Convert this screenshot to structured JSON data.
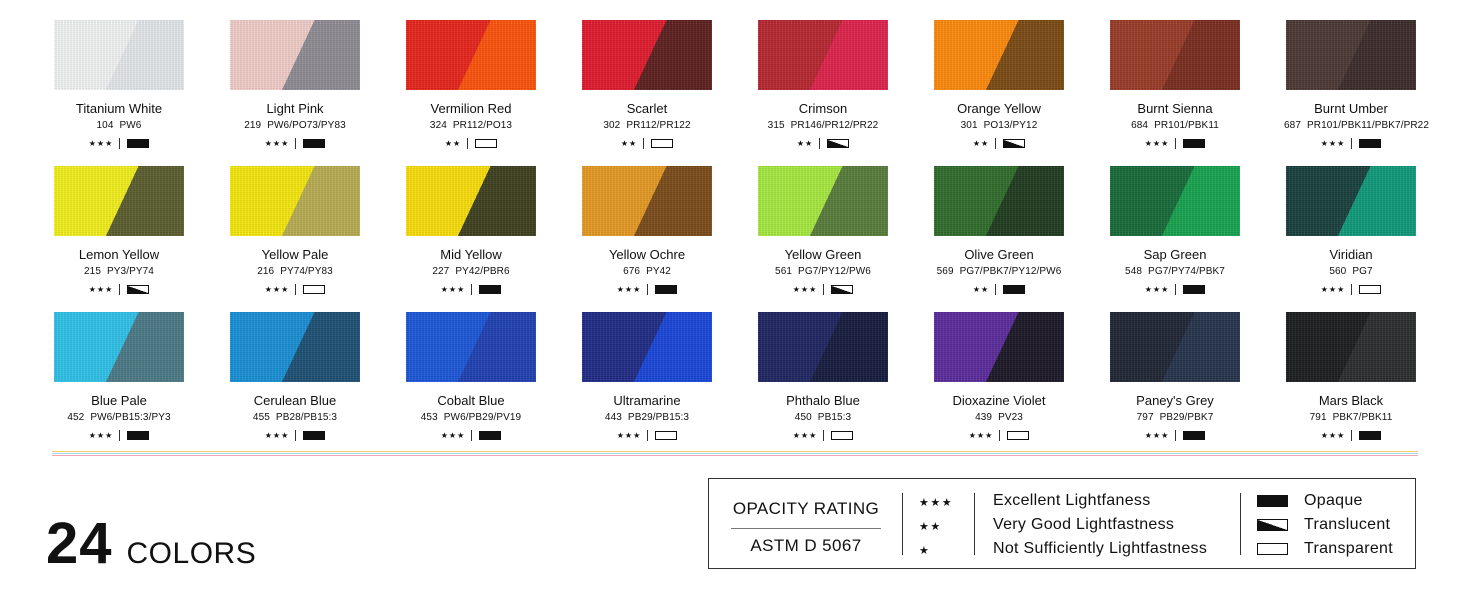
{
  "colors": [
    {
      "name": "Titanium White",
      "number": "104",
      "pigments": "PW6",
      "stars": "★★★",
      "opacity": "opaque",
      "c1": "#f4f5f6",
      "c2": "#e6e9ec"
    },
    {
      "name": "Light Pink",
      "number": "219",
      "pigments": "PW6/PO73/PY83",
      "stars": "★★★",
      "opacity": "opaque",
      "c1": "#f3cfc9",
      "c2": "#8f8c95"
    },
    {
      "name": "Vermilion Red",
      "number": "324",
      "pigments": "PR112/PO13",
      "stars": "★★",
      "opacity": "transparent",
      "c1": "#e8231a",
      "c2": "#ff5208"
    },
    {
      "name": "Scarlet",
      "number": "302",
      "pigments": "PR112/PR122",
      "stars": "★★",
      "opacity": "transparent",
      "c1": "#e2192d",
      "c2": "#5c1e1c"
    },
    {
      "name": "Crimson",
      "number": "315",
      "pigments": "PR146/PR12/PR22",
      "stars": "★★",
      "opacity": "translucent",
      "c1": "#b8252f",
      "c2": "#e0214b"
    },
    {
      "name": "Orange Yellow",
      "number": "301",
      "pigments": "PO13/PY12",
      "stars": "★★",
      "opacity": "translucent",
      "c1": "#ff8a0a",
      "c2": "#7a4a12"
    },
    {
      "name": "Burnt Sienna",
      "number": "684",
      "pigments": "PR101/PBK11",
      "stars": "★★★",
      "opacity": "opaque",
      "c1": "#9a3a26",
      "c2": "#7a2c1d"
    },
    {
      "name": "Burnt Umber",
      "number": "687",
      "pigments": "PR101/PBK11/PBK7/PR22",
      "stars": "★★★",
      "opacity": "opaque",
      "c1": "#4b3733",
      "c2": "#3a2a28"
    },
    {
      "name": "Lemon Yellow",
      "number": "215",
      "pigments": "PY3/PY74",
      "stars": "★★★",
      "opacity": "translucent",
      "c1": "#f3f11a",
      "c2": "#5a5d2c"
    },
    {
      "name": "Yellow Pale",
      "number": "216",
      "pigments": "PY74/PY83",
      "stars": "★★★",
      "opacity": "transparent",
      "c1": "#f7ea0c",
      "c2": "#b8ad52"
    },
    {
      "name": "Mid Yellow",
      "number": "227",
      "pigments": "PY42/PBR6",
      "stars": "★★★",
      "opacity": "opaque",
      "c1": "#fbe00a",
      "c2": "#3c3f1c"
    },
    {
      "name": "Yellow Ochre",
      "number": "676",
      "pigments": "PY42",
      "stars": "★★★",
      "opacity": "opaque",
      "c1": "#e79a22",
      "c2": "#7a4a18"
    },
    {
      "name": "Yellow Green",
      "number": "561",
      "pigments": "PG7/PY12/PW6",
      "stars": "★★★",
      "opacity": "translucent",
      "c1": "#a7ea3e",
      "c2": "#567c3a"
    },
    {
      "name": "Olive Green",
      "number": "569",
      "pigments": "PG7/PBK7/PY12/PW6",
      "stars": "★★",
      "opacity": "opaque",
      "c1": "#2e6c2a",
      "c2": "#1d3a1d"
    },
    {
      "name": "Sap Green",
      "number": "548",
      "pigments": "PG7/PY74/PBK7",
      "stars": "★★★",
      "opacity": "opaque",
      "c1": "#156a38",
      "c2": "#15a34e"
    },
    {
      "name": "Viridian",
      "number": "560",
      "pigments": "PG7",
      "stars": "★★★",
      "opacity": "transparent",
      "c1": "#163f3c",
      "c2": "#0e9a7a"
    },
    {
      "name": "Blue Pale",
      "number": "452",
      "pigments": "PW6/PB15:3/PY3",
      "stars": "★★★",
      "opacity": "opaque",
      "c1": "#2ec3ea",
      "c2": "#4a7a86"
    },
    {
      "name": "Cerulean Blue",
      "number": "455",
      "pigments": "PB28/PB15:3",
      "stars": "★★★",
      "opacity": "opaque",
      "c1": "#168fd6",
      "c2": "#1b4f74"
    },
    {
      "name": "Cobalt Blue",
      "number": "453",
      "pigments": "PW6/PB29/PV19",
      "stars": "★★★",
      "opacity": "opaque",
      "c1": "#1a56d8",
      "c2": "#1d3fb2"
    },
    {
      "name": "Ultramarine",
      "number": "443",
      "pigments": "PB29/PB15:3",
      "stars": "★★★",
      "opacity": "transparent",
      "c1": "#1f2a86",
      "c2": "#1644d8"
    },
    {
      "name": "Phthalo Blue",
      "number": "450",
      "pigments": "PB15:3",
      "stars": "★★★",
      "opacity": "transparent",
      "c1": "#1d2460",
      "c2": "#141a3e"
    },
    {
      "name": "Dioxazine Violet",
      "number": "439",
      "pigments": "PV23",
      "stars": "★★★",
      "opacity": "transparent",
      "c1": "#5a2a9c",
      "c2": "#1a1626"
    },
    {
      "name": "Paney's Grey",
      "number": "797",
      "pigments": "PB29/PBK7",
      "stars": "★★★",
      "opacity": "opaque",
      "c1": "#1e2434",
      "c2": "#24324a"
    },
    {
      "name": "Mars Black",
      "number": "791",
      "pigments": "PBK7/PBK11",
      "stars": "★★★",
      "opacity": "opaque",
      "c1": "#1a1b1c",
      "c2": "#2a2b2c"
    }
  ],
  "divider_colors": [
    "#f3c969",
    "#9fd7ee",
    "#f2a6b4"
  ],
  "count": {
    "number": "24",
    "label": "COLORS"
  },
  "legend": {
    "title": "OPACITY RATING",
    "standard": "ASTM D  5067",
    "ratings": [
      {
        "stars": "★★★",
        "text": "Excellent Lightfaness"
      },
      {
        "stars": "★★",
        "text": "Very Good Lightfastness"
      },
      {
        "stars": "★",
        "text": "Not Sufficiently Lightfastness"
      }
    ],
    "types": [
      {
        "key": "opaque",
        "label": "Opaque"
      },
      {
        "key": "translucent",
        "label": "Translucent"
      },
      {
        "key": "transparent",
        "label": "Transparent"
      }
    ]
  }
}
